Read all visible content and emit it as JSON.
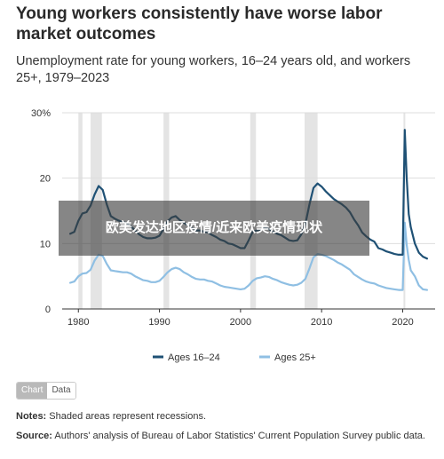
{
  "title": "Young workers consistently have worse labor market outcomes",
  "subtitle": "Unemployment rate for young workers, 16–24 years old, and workers 25+, 1979–2023",
  "overlay_text": "欧美发达地区疫情/近来欧美疫情现状",
  "toggle": {
    "chart_label": "Chart",
    "data_label": "Data"
  },
  "notes": {
    "label": "Notes:",
    "text": "Shaded areas represent recessions."
  },
  "source": {
    "label": "Source:",
    "text": "Authors' analysis of Bureau of Labor Statistics' Current Population Survey public data."
  },
  "chart_data": {
    "type": "line",
    "title": "",
    "xlabel": "",
    "ylabel": "",
    "xlim": [
      1978,
      2024
    ],
    "ylim": [
      0,
      30
    ],
    "x_ticks": [
      1980,
      1990,
      2000,
      2010,
      2020
    ],
    "x_tick_labels": [
      "1980",
      "1990",
      "2000",
      "2010",
      "2020"
    ],
    "y_ticks": [
      0,
      10,
      20,
      30
    ],
    "y_tick_labels": [
      "0",
      "10",
      "20",
      "30%"
    ],
    "grid": "horizontal",
    "legend_position": "bottom",
    "recessions": [
      [
        1980.0,
        1980.5
      ],
      [
        1981.5,
        1982.9
      ],
      [
        1990.5,
        1991.2
      ],
      [
        2001.2,
        2001.9
      ],
      [
        2007.9,
        2009.5
      ],
      [
        2020.1,
        2020.3
      ]
    ],
    "colors": {
      "young": "#1f5175",
      "older": "#8fbfe3",
      "recession": "#e4e4e4",
      "grid": "#dddddd"
    },
    "series": [
      {
        "name": "Ages 16–24",
        "x": [
          1979,
          1979.5,
          1980,
          1980.5,
          1981,
          1981.5,
          1982,
          1982.5,
          1983,
          1983.5,
          1984,
          1984.5,
          1985,
          1985.5,
          1986,
          1986.5,
          1987,
          1987.5,
          1988,
          1988.5,
          1989,
          1989.5,
          1990,
          1990.5,
          1991,
          1991.5,
          1992,
          1992.5,
          1993,
          1993.5,
          1994,
          1994.5,
          1995,
          1995.5,
          1996,
          1996.5,
          1997,
          1997.5,
          1998,
          1998.5,
          1999,
          1999.5,
          2000,
          2000.5,
          2001,
          2001.5,
          2002,
          2002.5,
          2003,
          2003.5,
          2004,
          2004.5,
          2005,
          2005.5,
          2006,
          2006.5,
          2007,
          2007.5,
          2008,
          2008.5,
          2009,
          2009.5,
          2010,
          2010.5,
          2011,
          2011.5,
          2012,
          2012.5,
          2013,
          2013.5,
          2014,
          2014.5,
          2015,
          2015.5,
          2016,
          2016.5,
          2017,
          2017.5,
          2018,
          2018.5,
          2019,
          2019.5,
          2020.0,
          2020.25,
          2020.5,
          2020.75,
          2021,
          2021.5,
          2022,
          2022.5,
          2023
        ],
        "values": [
          11.5,
          11.8,
          13.5,
          14.6,
          14.8,
          15.8,
          17.5,
          18.8,
          18.2,
          16.0,
          14.2,
          13.8,
          13.5,
          13.3,
          13.1,
          12.6,
          12.0,
          11.4,
          11.0,
          10.8,
          10.8,
          10.9,
          11.2,
          12.2,
          13.4,
          14.0,
          14.2,
          13.6,
          13.2,
          12.8,
          12.4,
          12.0,
          12.0,
          11.8,
          11.7,
          11.3,
          11.0,
          10.6,
          10.4,
          10.0,
          9.9,
          9.6,
          9.3,
          9.3,
          10.5,
          11.8,
          12.0,
          12.1,
          12.4,
          12.2,
          11.8,
          11.5,
          11.3,
          10.9,
          10.5,
          10.4,
          10.5,
          11.4,
          13.0,
          16.0,
          18.5,
          19.2,
          18.7,
          18.0,
          17.4,
          16.8,
          16.4,
          16.0,
          15.5,
          14.8,
          13.7,
          12.8,
          11.7,
          11.1,
          10.6,
          10.3,
          9.3,
          9.1,
          8.8,
          8.6,
          8.4,
          8.3,
          8.3,
          27.4,
          20.0,
          14.5,
          12.5,
          10.0,
          8.6,
          8.0,
          7.7
        ]
      },
      {
        "name": "Ages 25+",
        "x": [
          1979,
          1979.5,
          1980,
          1980.5,
          1981,
          1981.5,
          1982,
          1982.5,
          1983,
          1983.5,
          1984,
          1984.5,
          1985,
          1985.5,
          1986,
          1986.5,
          1987,
          1987.5,
          1988,
          1988.5,
          1989,
          1989.5,
          1990,
          1990.5,
          1991,
          1991.5,
          1992,
          1992.5,
          1993,
          1993.5,
          1994,
          1994.5,
          1995,
          1995.5,
          1996,
          1996.5,
          1997,
          1997.5,
          1998,
          1998.5,
          1999,
          1999.5,
          2000,
          2000.5,
          2001,
          2001.5,
          2002,
          2002.5,
          2003,
          2003.5,
          2004,
          2004.5,
          2005,
          2005.5,
          2006,
          2006.5,
          2007,
          2007.5,
          2008,
          2008.5,
          2009,
          2009.5,
          2010,
          2010.5,
          2011,
          2011.5,
          2012,
          2012.5,
          2013,
          2013.5,
          2014,
          2014.5,
          2015,
          2015.5,
          2016,
          2016.5,
          2017,
          2017.5,
          2018,
          2018.5,
          2019,
          2019.5,
          2020.0,
          2020.25,
          2020.5,
          2020.75,
          2021,
          2021.5,
          2022,
          2022.5,
          2023
        ],
        "values": [
          4.0,
          4.2,
          5.0,
          5.4,
          5.5,
          6.0,
          7.4,
          8.3,
          8.1,
          6.9,
          5.9,
          5.8,
          5.7,
          5.6,
          5.6,
          5.4,
          5.0,
          4.7,
          4.4,
          4.3,
          4.1,
          4.1,
          4.3,
          4.9,
          5.6,
          6.1,
          6.3,
          6.1,
          5.6,
          5.3,
          4.9,
          4.6,
          4.5,
          4.5,
          4.3,
          4.2,
          3.9,
          3.6,
          3.4,
          3.3,
          3.2,
          3.1,
          3.0,
          3.1,
          3.6,
          4.3,
          4.7,
          4.8,
          5.0,
          4.9,
          4.6,
          4.4,
          4.1,
          3.9,
          3.7,
          3.6,
          3.7,
          4.0,
          4.6,
          6.2,
          7.9,
          8.4,
          8.3,
          8.1,
          7.8,
          7.5,
          7.1,
          6.8,
          6.4,
          6.0,
          5.3,
          4.9,
          4.5,
          4.2,
          4.0,
          3.9,
          3.6,
          3.4,
          3.2,
          3.1,
          3.0,
          2.9,
          2.9,
          13.2,
          9.8,
          7.5,
          5.9,
          5.0,
          3.6,
          3.0,
          2.9
        ]
      }
    ]
  }
}
